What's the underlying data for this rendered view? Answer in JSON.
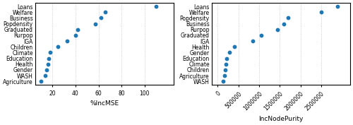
{
  "chart_data": [
    {
      "type": "dot",
      "categories": [
        "Loans",
        "Welfare",
        "Business",
        "Popdensity",
        "Graduated",
        "Rurpop",
        "IGA",
        "Children",
        "Climate",
        "Education",
        "Health",
        "Gender",
        "WASH",
        "Agriculture"
      ],
      "values": [
        110,
        66,
        62,
        57,
        42,
        40,
        33,
        25,
        18,
        17,
        16,
        15,
        14,
        10
      ],
      "xlabel": "%IncMSE",
      "xlim": [
        5,
        125
      ],
      "xticks": [
        20,
        40,
        60,
        80,
        100
      ],
      "grid": "x"
    },
    {
      "type": "dot",
      "categories": [
        "Loans",
        "Welfare",
        "Popdensity",
        "Business",
        "Rurpop",
        "Graduated",
        "IGA",
        "Health",
        "Gender",
        "Education",
        "Climate",
        "Children",
        "Agriculture",
        "WASH"
      ],
      "values": [
        2900000,
        2500000,
        1700000,
        1600000,
        1450000,
        1050000,
        850000,
        400000,
        280000,
        220000,
        200000,
        190000,
        160000,
        130000
      ],
      "xlabel": "IncNodePurity",
      "xlim": [
        -150000,
        3200000
      ],
      "xticks": [
        0,
        500000,
        1000000,
        1500000,
        2000000,
        2500000
      ],
      "grid": "x"
    }
  ]
}
